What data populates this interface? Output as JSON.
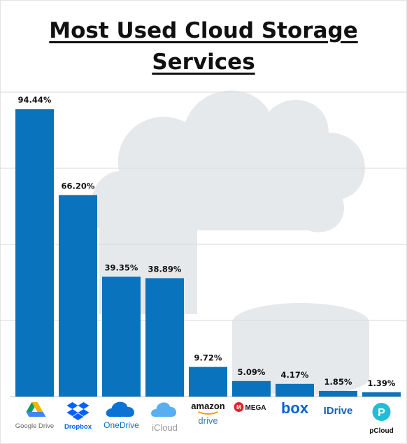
{
  "title": {
    "line1": "Most Used Cloud Storage",
    "line2": "Services"
  },
  "colors": {
    "bar": "#0a73bd",
    "cloud": "#e6e9ec",
    "grid": "#d9d9d9",
    "title": "#111111"
  },
  "chart_data": {
    "type": "bar",
    "title": "Most Used Cloud Storage Services",
    "categories": [
      "Google Drive",
      "Dropbox",
      "OneDrive",
      "iCloud",
      "amazon drive",
      "MEGA",
      "box",
      "IDrive",
      "pCloud"
    ],
    "values": [
      94.44,
      66.2,
      39.35,
      38.89,
      9.72,
      5.09,
      4.17,
      1.85,
      1.39
    ],
    "value_labels": [
      "94.44%",
      "66.20%",
      "39.35%",
      "38.89%",
      "9.72%",
      "5.09%",
      "4.17%",
      "1.85%",
      "1.39%"
    ],
    "unit": "%",
    "ylim": [
      0,
      100
    ],
    "grid": true,
    "legend": "none"
  },
  "logos": [
    {
      "icon": "google-drive-icon",
      "text": "Google Drive"
    },
    {
      "icon": "dropbox-icon",
      "text": "Dropbox"
    },
    {
      "icon": "onedrive-icon",
      "text": "OneDrive"
    },
    {
      "icon": "icloud-icon",
      "text": "iCloud"
    },
    {
      "icon": "amazon-drive-logo",
      "text": "amazon",
      "text2": "drive"
    },
    {
      "icon": "mega-icon",
      "text": "MEGA"
    },
    {
      "icon": "box-logo",
      "text": "box"
    },
    {
      "icon": "idrive-logo",
      "text": "IDrive"
    },
    {
      "icon": "pcloud-icon",
      "text": "pCloud"
    }
  ]
}
